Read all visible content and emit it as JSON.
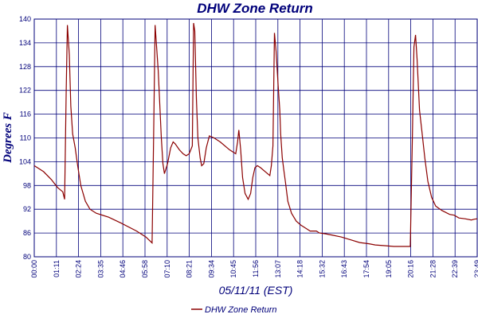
{
  "chart_data": {
    "type": "line",
    "title": "DHW Zone Return",
    "ylabel": "Degrees F",
    "xlabel": "05/11/11 (EST)",
    "ylim": [
      80,
      140
    ],
    "xlim": [
      0,
      1429
    ],
    "y_ticks": [
      "80",
      "86",
      "92",
      "98",
      "104",
      "110",
      "116",
      "122",
      "128",
      "134",
      "140"
    ],
    "x_ticks": [
      "00:00",
      "01:11",
      "02:24",
      "03:35",
      "04:46",
      "05:58",
      "07:10",
      "08:21",
      "09:34",
      "10:45",
      "11:56",
      "13:07",
      "14:18",
      "15:32",
      "16:43",
      "17:54",
      "19:05",
      "20:16",
      "21:28",
      "22:39",
      "23:49"
    ],
    "grid": true,
    "legend_position": "bottom-center",
    "line_color": "#8b0000",
    "grid_color": "#00007a",
    "series": [
      {
        "name": "DHW Zone Return",
        "x": [
          0,
          30,
          55,
          75,
          92,
          98,
          103,
          107,
          113,
          118,
          124,
          132,
          140,
          150,
          165,
          180,
          200,
          240,
          280,
          330,
          360,
          380,
          385,
          390,
          400,
          410,
          415,
          420,
          430,
          440,
          448,
          455,
          468,
          480,
          490,
          500,
          505,
          510,
          514,
          518,
          523,
          528,
          535,
          540,
          547,
          555,
          565,
          580,
          600,
          630,
          650,
          656,
          660,
          666,
          672,
          680,
          690,
          698,
          705,
          712,
          720,
          730,
          745,
          760,
          765,
          770,
          775,
          780,
          787,
          792,
          795,
          800,
          805,
          810,
          818,
          830,
          845,
          860,
          870,
          880,
          890,
          900,
          910,
          920,
          940,
          960,
          990,
          1020,
          1050,
          1080,
          1100,
          1130,
          1160,
          1192,
          1212,
          1213,
          1220,
          1225,
          1230,
          1235,
          1243,
          1250,
          1260,
          1270,
          1282,
          1295,
          1315,
          1340,
          1355,
          1370,
          1390,
          1410,
          1420,
          1429
        ],
        "y": [
          103,
          101.5,
          99.5,
          97.5,
          96.4,
          94.5,
          122,
          138.5,
          131,
          118,
          111,
          107.5,
          103,
          98,
          94,
          92,
          91,
          90,
          88.5,
          86.5,
          85,
          83.5,
          110,
          138.5,
          127,
          110,
          103.5,
          101,
          103.5,
          107.5,
          109,
          108.5,
          107,
          106,
          105.5,
          106,
          107,
          108,
          139,
          137,
          120,
          110,
          105,
          103,
          103.5,
          107.5,
          110.5,
          110,
          109,
          107,
          106,
          109,
          112,
          107,
          100,
          96,
          94.5,
          96,
          100,
          102.5,
          103,
          102.5,
          101.5,
          100.5,
          103,
          108,
          136.5,
          132,
          123,
          117,
          111,
          105,
          102,
          99,
          94,
          91,
          89,
          88,
          87.5,
          87,
          86.5,
          86.5,
          86.5,
          86,
          85.8,
          85.5,
          85,
          84.3,
          83.6,
          83.3,
          83,
          82.8,
          82.6,
          82.6,
          82.6,
          82.6,
          111,
          133,
          136,
          130,
          117,
          112,
          105,
          99,
          95,
          92.8,
          91.7,
          90.7,
          90.5,
          89.8,
          89.6,
          89.3,
          89.5,
          89.6
        ]
      }
    ]
  }
}
